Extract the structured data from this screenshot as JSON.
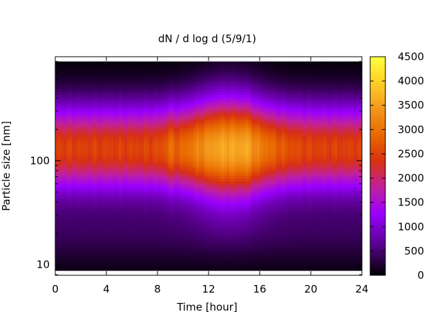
{
  "chart_data": {
    "type": "heatmap",
    "title": "dN / d log d (5/9/1)",
    "xlabel": "Time [hour]",
    "ylabel": "Particle size [nm]",
    "x_range": [
      0,
      24
    ],
    "y_range": [
      7.9,
      1000
    ],
    "y_scale": "log",
    "x_ticks": [
      0,
      4,
      8,
      12,
      16,
      20,
      24
    ],
    "y_tick_labels": [
      {
        "value": 10,
        "label": "10"
      },
      {
        "value": 100,
        "label": "100"
      }
    ],
    "colorbar": {
      "range": [
        0,
        4500
      ],
      "ticks": [
        0,
        500,
        1000,
        1500,
        2000,
        2500,
        3000,
        3500,
        4000,
        4500
      ],
      "colormap": [
        "#000000",
        "#7000c0",
        "#b000ff",
        "#cc2020",
        "#e05000",
        "#f39020",
        "#ffd020",
        "#ffff40"
      ]
    },
    "mode_center_nm": 130,
    "peak": {
      "time_hour": 13.5,
      "value": 3600
    }
  }
}
